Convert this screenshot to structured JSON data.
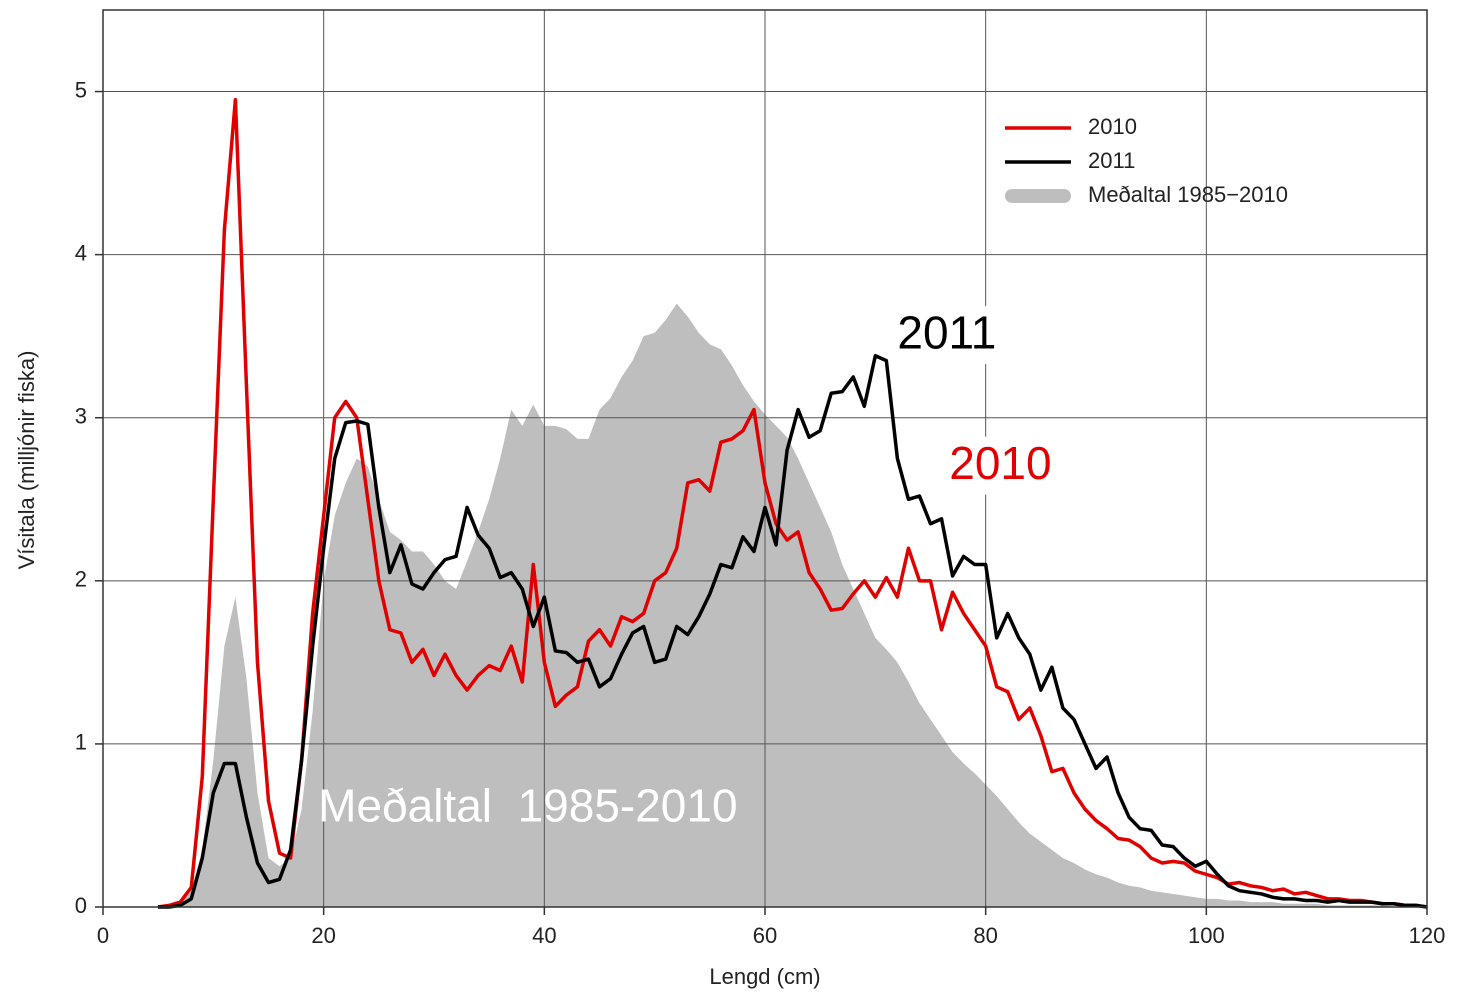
{
  "chart_data": {
    "type": "line",
    "xlabel": "Lengd (cm)",
    "ylabel": "Vísitala (milljónir fiska)",
    "x": [
      5,
      6,
      7,
      8,
      9,
      10,
      11,
      12,
      13,
      14,
      15,
      16,
      17,
      18,
      19,
      20,
      21,
      22,
      23,
      24,
      25,
      26,
      27,
      28,
      29,
      30,
      31,
      32,
      33,
      34,
      35,
      36,
      37,
      38,
      39,
      40,
      41,
      42,
      43,
      44,
      45,
      46,
      47,
      48,
      49,
      50,
      51,
      52,
      53,
      54,
      55,
      56,
      57,
      58,
      59,
      60,
      61,
      62,
      63,
      64,
      65,
      66,
      67,
      68,
      69,
      70,
      71,
      72,
      73,
      74,
      75,
      76,
      77,
      78,
      79,
      80,
      81,
      82,
      83,
      84,
      85,
      86,
      87,
      88,
      89,
      90,
      91,
      92,
      93,
      94,
      95,
      96,
      97,
      98,
      99,
      100,
      101,
      102,
      103,
      104,
      105,
      106,
      107,
      108,
      109,
      110,
      111,
      112,
      113,
      114,
      115,
      116,
      117,
      118,
      119,
      120
    ],
    "series": [
      {
        "name": "2010",
        "color": "#e00000",
        "kind": "line",
        "values": [
          0,
          0.01,
          0.03,
          0.12,
          0.8,
          2.5,
          4.15,
          4.95,
          3.2,
          1.5,
          0.65,
          0.33,
          0.3,
          0.9,
          1.8,
          2.4,
          3.0,
          3.1,
          3.0,
          2.5,
          2.0,
          1.7,
          1.68,
          1.5,
          1.58,
          1.42,
          1.55,
          1.42,
          1.33,
          1.42,
          1.48,
          1.45,
          1.6,
          1.38,
          2.1,
          1.5,
          1.23,
          1.3,
          1.35,
          1.63,
          1.7,
          1.6,
          1.78,
          1.75,
          1.8,
          2.0,
          2.05,
          2.2,
          2.6,
          2.62,
          2.55,
          2.85,
          2.87,
          2.92,
          3.05,
          2.6,
          2.35,
          2.25,
          2.3,
          2.05,
          1.95,
          1.82,
          1.83,
          1.92,
          2.0,
          1.9,
          2.02,
          1.9,
          2.2,
          2.0,
          2.0,
          1.7,
          1.93,
          1.8,
          1.7,
          1.6,
          1.35,
          1.32,
          1.15,
          1.22,
          1.05,
          0.83,
          0.85,
          0.7,
          0.6,
          0.53,
          0.48,
          0.42,
          0.41,
          0.37,
          0.3,
          0.27,
          0.28,
          0.27,
          0.22,
          0.2,
          0.18,
          0.14,
          0.15,
          0.13,
          0.12,
          0.1,
          0.11,
          0.08,
          0.09,
          0.07,
          0.05,
          0.05,
          0.04,
          0.04,
          0.03,
          0.02,
          0.02,
          0.01,
          0.01,
          0
        ]
      },
      {
        "name": "2011",
        "color": "#000000",
        "kind": "line",
        "values": [
          0,
          0,
          0.01,
          0.05,
          0.3,
          0.7,
          0.88,
          0.88,
          0.55,
          0.27,
          0.15,
          0.17,
          0.35,
          0.9,
          1.6,
          2.2,
          2.75,
          2.97,
          2.98,
          2.96,
          2.45,
          2.05,
          2.22,
          1.98,
          1.95,
          2.05,
          2.13,
          2.15,
          2.45,
          2.28,
          2.2,
          2.02,
          2.05,
          1.95,
          1.72,
          1.9,
          1.57,
          1.56,
          1.5,
          1.52,
          1.35,
          1.4,
          1.55,
          1.68,
          1.72,
          1.5,
          1.52,
          1.72,
          1.67,
          1.78,
          1.92,
          2.1,
          2.08,
          2.27,
          2.18,
          2.45,
          2.22,
          2.8,
          3.05,
          2.88,
          2.92,
          3.15,
          3.16,
          3.25,
          3.07,
          3.38,
          3.35,
          2.75,
          2.5,
          2.52,
          2.35,
          2.38,
          2.03,
          2.15,
          2.1,
          2.1,
          1.65,
          1.8,
          1.65,
          1.55,
          1.33,
          1.47,
          1.22,
          1.15,
          1.0,
          0.85,
          0.92,
          0.7,
          0.55,
          0.48,
          0.47,
          0.38,
          0.37,
          0.3,
          0.25,
          0.28,
          0.2,
          0.13,
          0.1,
          0.09,
          0.08,
          0.06,
          0.05,
          0.05,
          0.04,
          0.04,
          0.03,
          0.04,
          0.03,
          0.03,
          0.03,
          0.02,
          0.02,
          0.01,
          0.01,
          0
        ]
      },
      {
        "name": "Meðaltal 1985−2010",
        "color": "#bebebe",
        "kind": "area",
        "values": [
          0,
          0,
          0.02,
          0.1,
          0.35,
          0.9,
          1.6,
          1.9,
          1.4,
          0.7,
          0.3,
          0.25,
          0.3,
          0.6,
          1.2,
          2.0,
          2.4,
          2.6,
          2.75,
          2.7,
          2.5,
          2.3,
          2.25,
          2.18,
          2.18,
          2.1,
          2.0,
          1.95,
          2.12,
          2.3,
          2.5,
          2.75,
          3.05,
          2.95,
          3.08,
          2.95,
          2.95,
          2.93,
          2.87,
          2.87,
          3.05,
          3.12,
          3.25,
          3.35,
          3.5,
          3.52,
          3.6,
          3.7,
          3.62,
          3.52,
          3.45,
          3.42,
          3.32,
          3.2,
          3.1,
          3.02,
          2.95,
          2.88,
          2.75,
          2.6,
          2.45,
          2.3,
          2.1,
          1.95,
          1.8,
          1.65,
          1.58,
          1.5,
          1.38,
          1.25,
          1.15,
          1.05,
          0.95,
          0.88,
          0.82,
          0.75,
          0.68,
          0.6,
          0.52,
          0.45,
          0.4,
          0.35,
          0.3,
          0.27,
          0.23,
          0.2,
          0.18,
          0.15,
          0.13,
          0.12,
          0.1,
          0.09,
          0.08,
          0.07,
          0.06,
          0.05,
          0.05,
          0.04,
          0.04,
          0.03,
          0.03,
          0.03,
          0.02,
          0.02,
          0.02,
          0.02,
          0.01,
          0.01,
          0.01,
          0.01,
          0.01,
          0.01,
          0,
          0,
          0,
          0
        ]
      }
    ],
    "annotations": [
      "2011",
      "2010",
      "Meðaltal  1985-2010"
    ],
    "xlim": [
      0,
      120
    ],
    "xticks": [
      0,
      20,
      40,
      60,
      80,
      100,
      120
    ],
    "ylim": [
      0,
      5.5
    ],
    "yticks": [
      0,
      1,
      2,
      3,
      4,
      5
    ],
    "grid": true,
    "legend": "upper right"
  }
}
